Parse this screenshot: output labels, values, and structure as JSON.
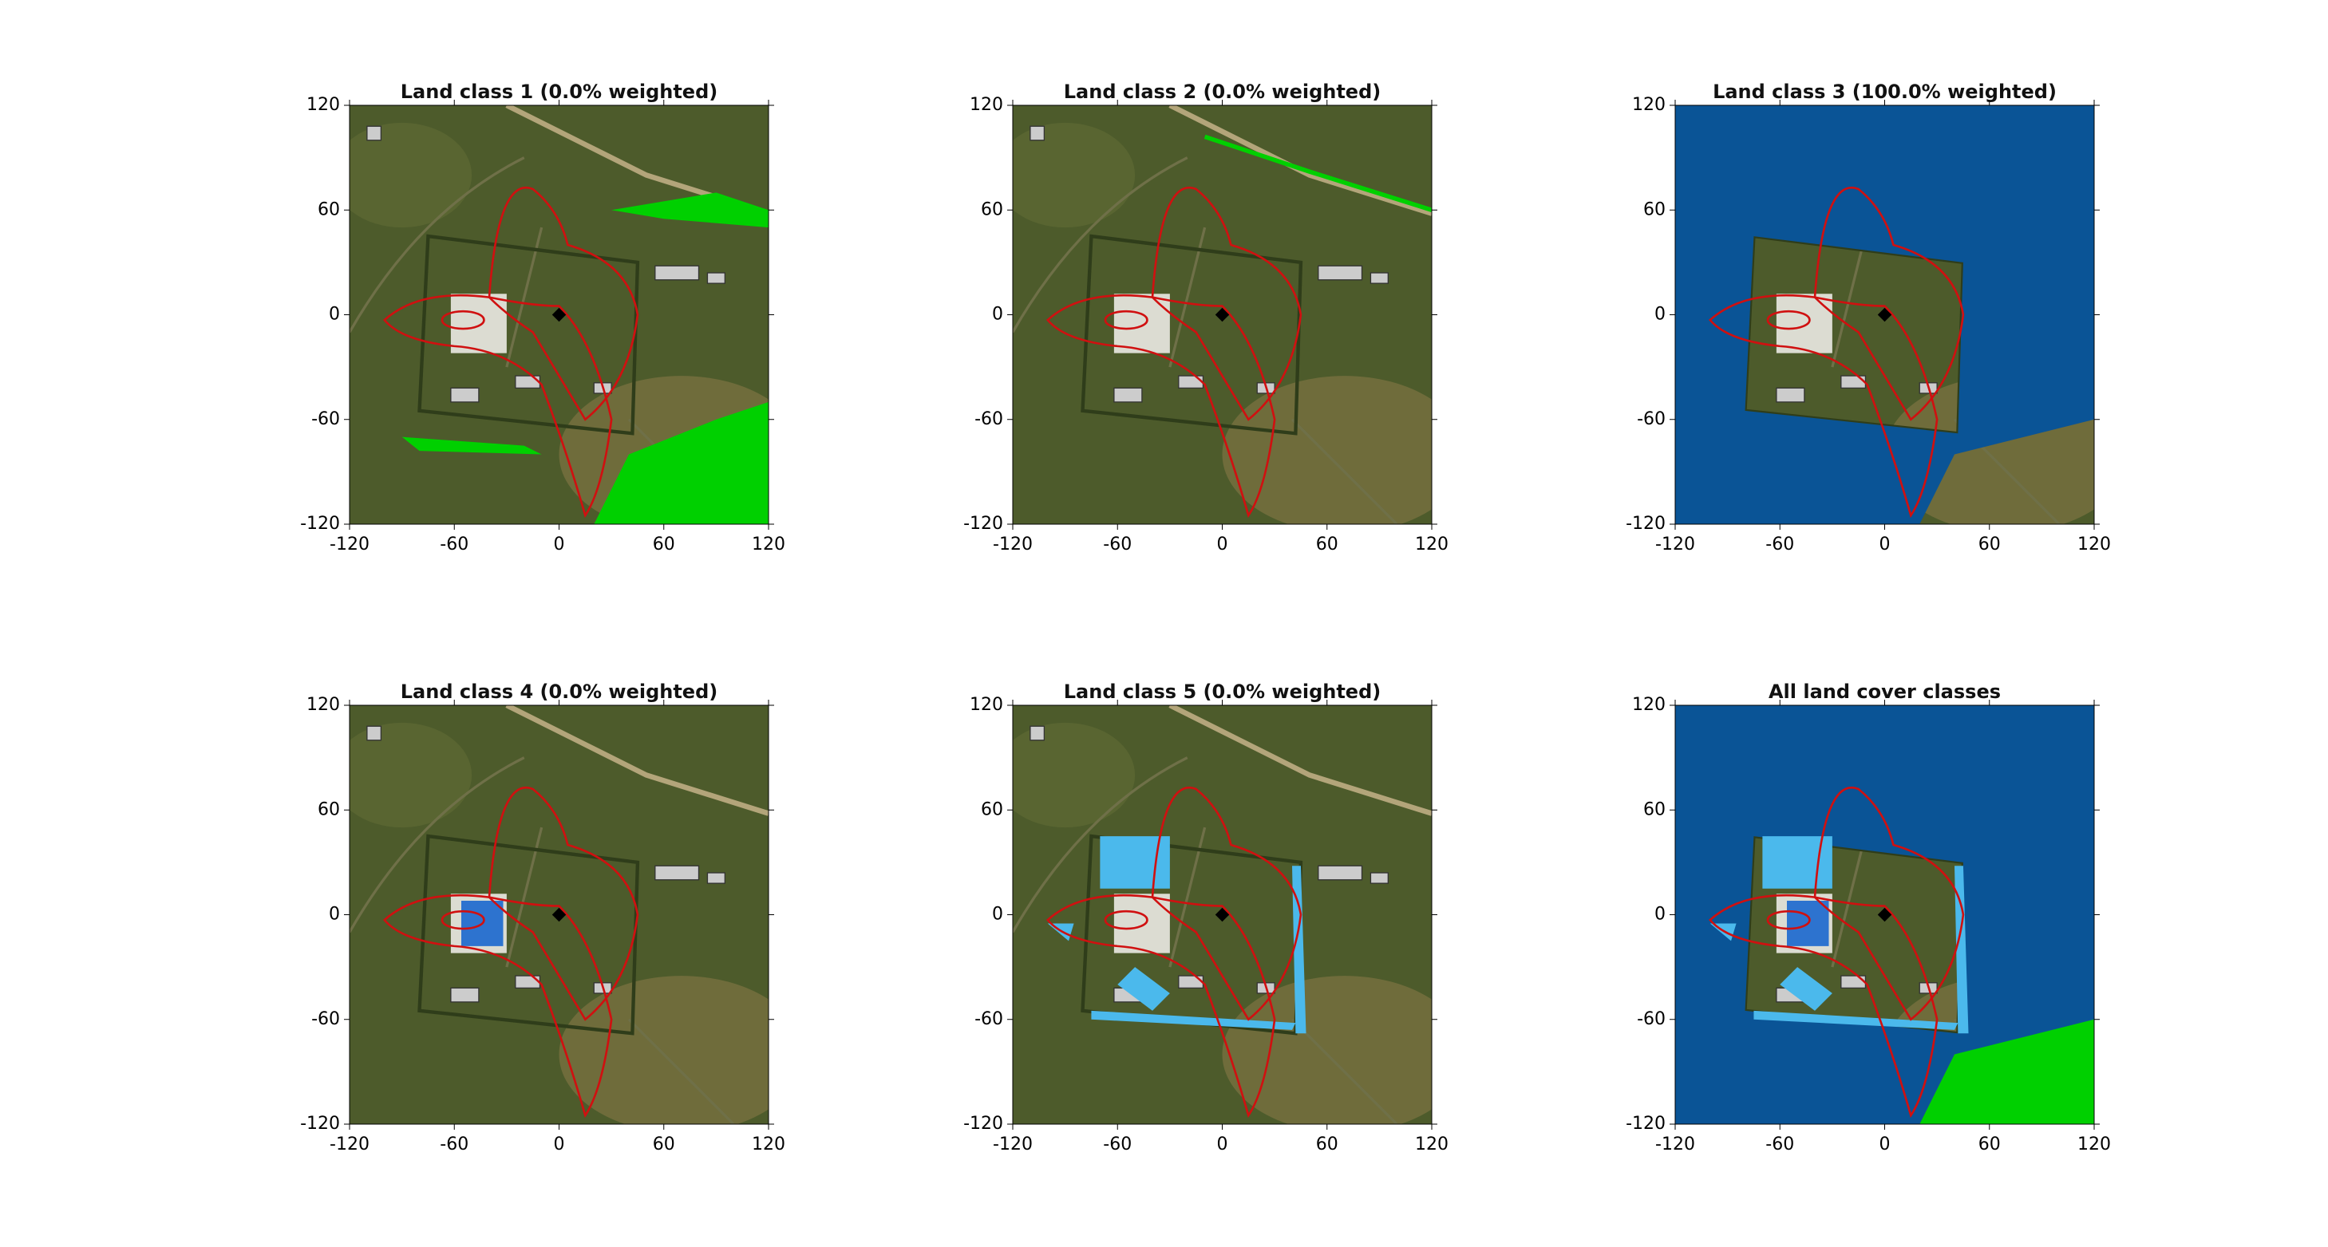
{
  "chart_data": [
    {
      "type": "image",
      "title": "Land class 1 (0.0% weighted)",
      "xlim": [
        -120,
        120
      ],
      "ylim": [
        -120,
        120
      ],
      "xticks": [
        -120,
        -60,
        0,
        60,
        120
      ],
      "yticks": [
        -120,
        -60,
        0,
        60,
        120
      ]
    },
    {
      "type": "image",
      "title": "Land class 2 (0.0% weighted)",
      "xlim": [
        -120,
        120
      ],
      "ylim": [
        -120,
        120
      ],
      "xticks": [
        -120,
        -60,
        0,
        60,
        120
      ],
      "yticks": [
        -120,
        -60,
        0,
        60,
        120
      ]
    },
    {
      "type": "image",
      "title": "Land class 3 (100.0% weighted)",
      "xlim": [
        -120,
        120
      ],
      "ylim": [
        -120,
        120
      ],
      "xticks": [
        -120,
        -60,
        0,
        60,
        120
      ],
      "yticks": [
        -120,
        -60,
        0,
        60,
        120
      ]
    },
    {
      "type": "image",
      "title": "Land class 4 (0.0% weighted)",
      "xlim": [
        -120,
        120
      ],
      "ylim": [
        -120,
        120
      ],
      "xticks": [
        -120,
        -60,
        0,
        60,
        120
      ],
      "yticks": [
        -120,
        -60,
        0,
        60,
        120
      ]
    },
    {
      "type": "image",
      "title": "Land class 5 (0.0% weighted)",
      "xlim": [
        -120,
        120
      ],
      "ylim": [
        -120,
        120
      ],
      "xticks": [
        -120,
        -60,
        0,
        60,
        120
      ],
      "yticks": [
        -120,
        -60,
        0,
        60,
        120
      ]
    },
    {
      "type": "image",
      "title": "All land cover classes",
      "xlim": [
        -120,
        120
      ],
      "ylim": [
        -120,
        120
      ],
      "xticks": [
        -120,
        -60,
        0,
        60,
        120
      ],
      "yticks": [
        -120,
        -60,
        0,
        60,
        120
      ]
    }
  ]
}
